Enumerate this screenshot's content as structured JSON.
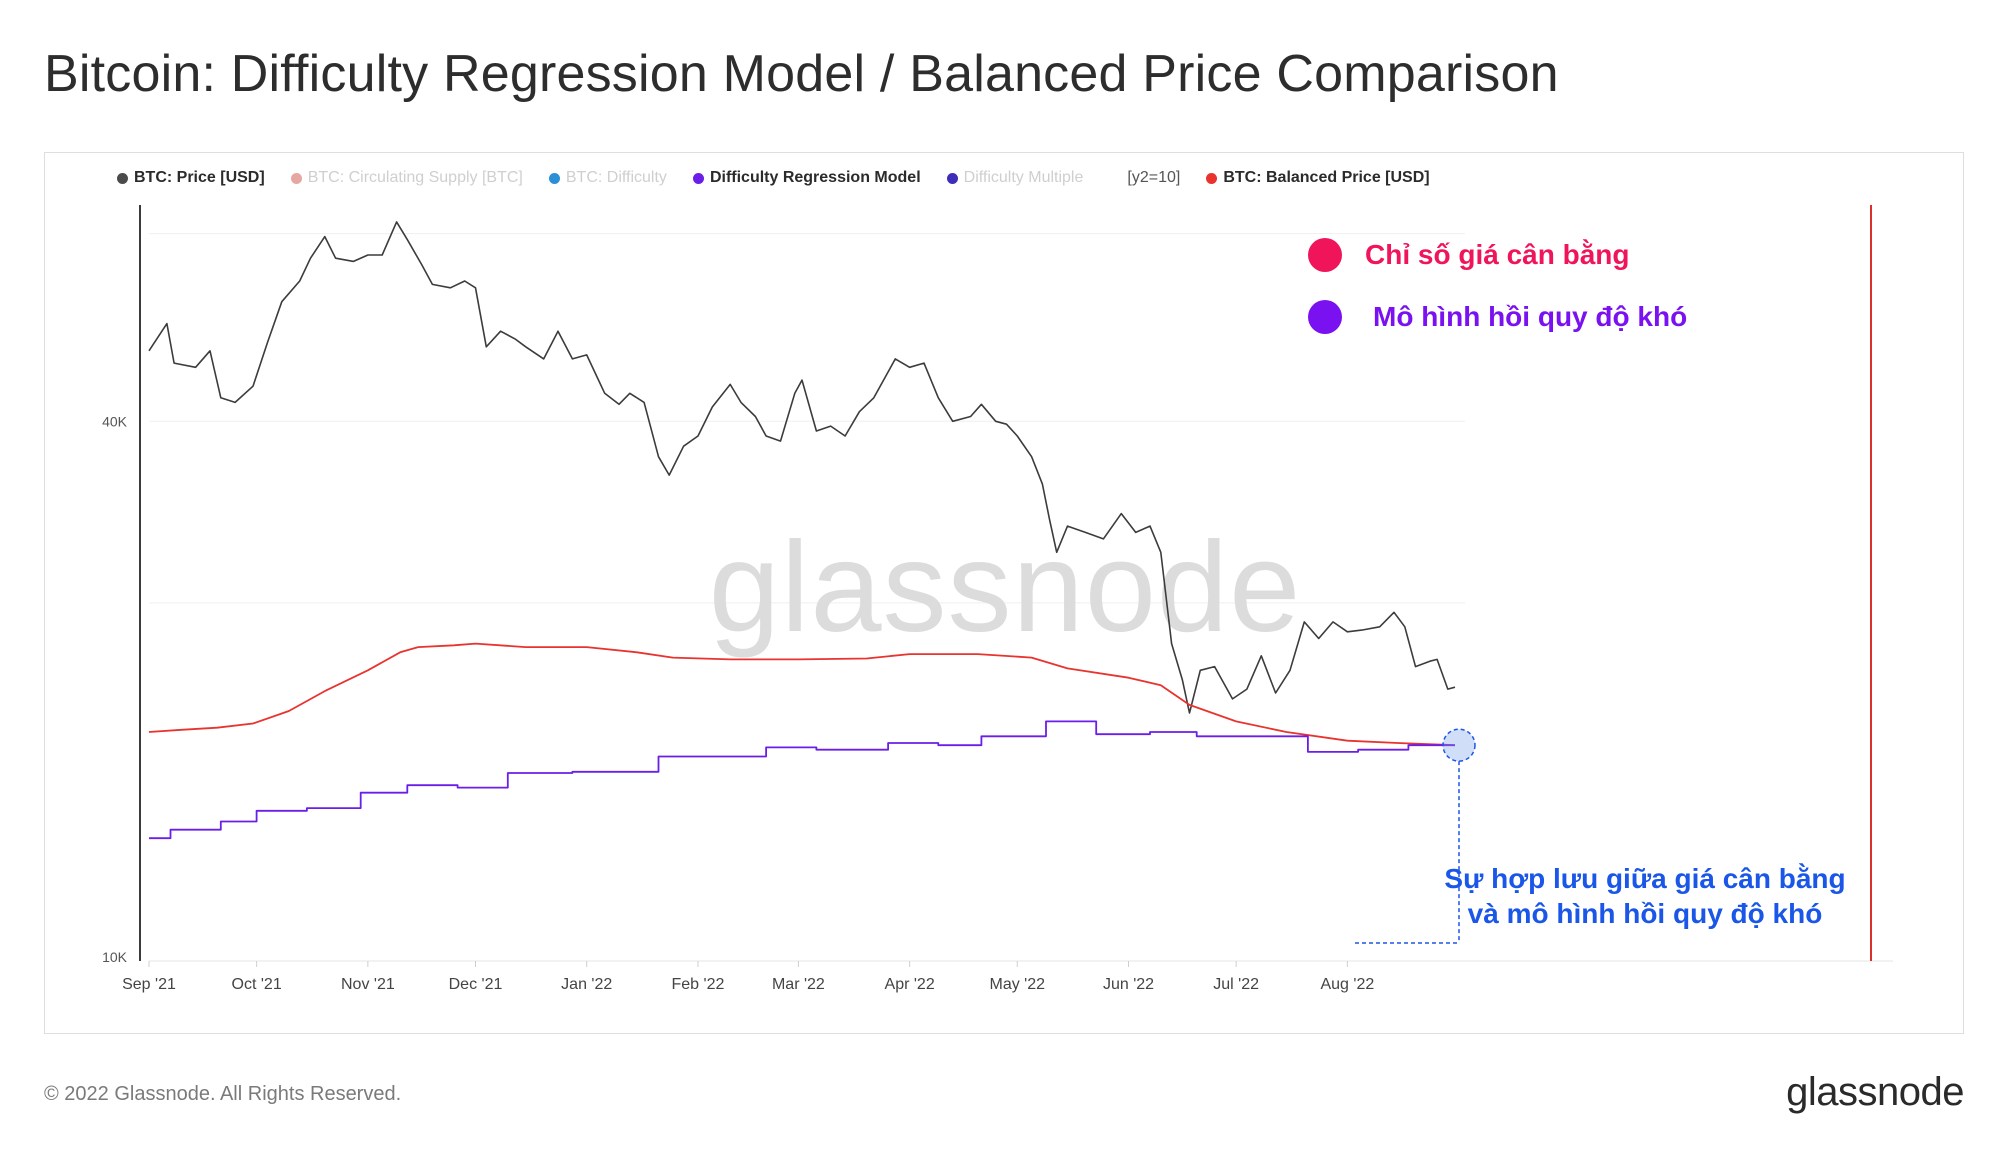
{
  "title": "Bitcoin: Difficulty Regression Model / Balanced Price Comparison",
  "legend": [
    {
      "label": "BTC: Price [USD]",
      "color": "#4a4a4a",
      "enabled": true
    },
    {
      "label": "BTC: Circulating Supply [BTC]",
      "color": "#e0493a",
      "enabled": false
    },
    {
      "label": "BTC: Difficulty",
      "color": "#2b8fd6",
      "enabled": false
    },
    {
      "label": "Difficulty Regression Model",
      "color": "#6a1ee8",
      "enabled": true
    },
    {
      "label": "Difficulty Multiple",
      "color": "#3d2db8",
      "enabled": false
    }
  ],
  "legend_extra": "[y2=10]",
  "legend_last": {
    "label": "BTC: Balanced Price [USD]",
    "color": "#e8332f",
    "enabled": true
  },
  "annotations": {
    "balanced_label": "Chỉ số giá cân bằng",
    "balanced_color": "#f0145a",
    "difficulty_label": "Mô hình hồi quy độ khó",
    "difficulty_color": "#7a11f0",
    "convergence_line1": "Sự hợp lưu giữa giá cân bằng",
    "convergence_line2": "và mô hình hồi quy độ khó",
    "convergence_color": "#1a56e8"
  },
  "watermark": "glassnode",
  "footer": {
    "copyright": "© 2022 Glassnode. All Rights Reserved.",
    "brand": "glassnode"
  },
  "chart_data": {
    "type": "line",
    "y_scale": "log",
    "ylim": [
      10000,
      70000
    ],
    "y_ticks": [
      {
        "value": 40000,
        "label": "40K"
      },
      {
        "value": 10000,
        "label": "10K"
      }
    ],
    "x_ticks": [
      {
        "date": "2021-09-01",
        "label": "Sep '21"
      },
      {
        "date": "2021-10-01",
        "label": "Oct '21"
      },
      {
        "date": "2021-11-01",
        "label": "Nov '21"
      },
      {
        "date": "2021-12-01",
        "label": "Dec '21"
      },
      {
        "date": "2022-01-01",
        "label": "Jan '22"
      },
      {
        "date": "2022-02-01",
        "label": "Feb '22"
      },
      {
        "date": "2022-03-01",
        "label": "Mar '22"
      },
      {
        "date": "2022-04-01",
        "label": "Apr '22"
      },
      {
        "date": "2022-05-01",
        "label": "May '22"
      },
      {
        "date": "2022-06-01",
        "label": "Jun '22"
      },
      {
        "date": "2022-07-01",
        "label": "Jul '22"
      },
      {
        "date": "2022-08-01",
        "label": "Aug '22"
      }
    ],
    "xlim": [
      "2021-09-01",
      "2022-08-31"
    ],
    "series": [
      {
        "name": "BTC: Price [USD]",
        "color": "#3c3c3c",
        "points": [
          [
            "2021-09-01",
            48000
          ],
          [
            "2021-09-06",
            51500
          ],
          [
            "2021-09-08",
            46500
          ],
          [
            "2021-09-14",
            46000
          ],
          [
            "2021-09-18",
            48000
          ],
          [
            "2021-09-21",
            42500
          ],
          [
            "2021-09-25",
            42000
          ],
          [
            "2021-09-30",
            43800
          ],
          [
            "2021-10-04",
            49000
          ],
          [
            "2021-10-08",
            54500
          ],
          [
            "2021-10-13",
            57500
          ],
          [
            "2021-10-16",
            61000
          ],
          [
            "2021-10-20",
            64500
          ],
          [
            "2021-10-23",
            61000
          ],
          [
            "2021-10-28",
            60500
          ],
          [
            "2021-11-01",
            61500
          ],
          [
            "2021-11-05",
            61500
          ],
          [
            "2021-11-09",
            67000
          ],
          [
            "2021-11-12",
            64000
          ],
          [
            "2021-11-16",
            60000
          ],
          [
            "2021-11-19",
            57000
          ],
          [
            "2021-11-24",
            56500
          ],
          [
            "2021-11-28",
            57500
          ],
          [
            "2021-12-01",
            56500
          ],
          [
            "2021-12-04",
            48500
          ],
          [
            "2021-12-08",
            50500
          ],
          [
            "2021-12-12",
            49500
          ],
          [
            "2021-12-15",
            48500
          ],
          [
            "2021-12-20",
            47000
          ],
          [
            "2021-12-24",
            50500
          ],
          [
            "2021-12-28",
            47000
          ],
          [
            "2022-01-01",
            47500
          ],
          [
            "2022-01-06",
            43000
          ],
          [
            "2022-01-10",
            41800
          ],
          [
            "2022-01-13",
            43000
          ],
          [
            "2022-01-17",
            42000
          ],
          [
            "2022-01-21",
            36500
          ],
          [
            "2022-01-24",
            34800
          ],
          [
            "2022-01-28",
            37500
          ],
          [
            "2022-02-01",
            38500
          ],
          [
            "2022-02-05",
            41500
          ],
          [
            "2022-02-10",
            44000
          ],
          [
            "2022-02-13",
            42000
          ],
          [
            "2022-02-17",
            40500
          ],
          [
            "2022-02-20",
            38500
          ],
          [
            "2022-02-24",
            38000
          ],
          [
            "2022-02-28",
            43000
          ],
          [
            "2022-03-02",
            44500
          ],
          [
            "2022-03-06",
            39000
          ],
          [
            "2022-03-10",
            39500
          ],
          [
            "2022-03-14",
            38500
          ],
          [
            "2022-03-18",
            41000
          ],
          [
            "2022-03-22",
            42500
          ],
          [
            "2022-03-28",
            47000
          ],
          [
            "2022-04-01",
            46000
          ],
          [
            "2022-04-05",
            46500
          ],
          [
            "2022-04-09",
            42500
          ],
          [
            "2022-04-13",
            40000
          ],
          [
            "2022-04-18",
            40500
          ],
          [
            "2022-04-21",
            41800
          ],
          [
            "2022-04-25",
            40000
          ],
          [
            "2022-04-28",
            39700
          ],
          [
            "2022-05-01",
            38500
          ],
          [
            "2022-05-05",
            36500
          ],
          [
            "2022-05-08",
            34000
          ],
          [
            "2022-05-10",
            31000
          ],
          [
            "2022-05-12",
            28500
          ],
          [
            "2022-05-15",
            30500
          ],
          [
            "2022-05-20",
            30000
          ],
          [
            "2022-05-25",
            29500
          ],
          [
            "2022-05-30",
            31500
          ],
          [
            "2022-06-03",
            30000
          ],
          [
            "2022-06-07",
            30500
          ],
          [
            "2022-06-10",
            28500
          ],
          [
            "2022-06-13",
            22500
          ],
          [
            "2022-06-16",
            20500
          ],
          [
            "2022-06-18",
            18800
          ],
          [
            "2022-06-21",
            21000
          ],
          [
            "2022-06-25",
            21200
          ],
          [
            "2022-06-30",
            19500
          ],
          [
            "2022-07-04",
            20000
          ],
          [
            "2022-07-08",
            21800
          ],
          [
            "2022-07-12",
            19800
          ],
          [
            "2022-07-16",
            21000
          ],
          [
            "2022-07-20",
            23800
          ],
          [
            "2022-07-24",
            22800
          ],
          [
            "2022-07-28",
            23800
          ],
          [
            "2022-08-01",
            23200
          ],
          [
            "2022-08-05",
            23300
          ],
          [
            "2022-08-10",
            23500
          ],
          [
            "2022-08-14",
            24400
          ],
          [
            "2022-08-17",
            23500
          ],
          [
            "2022-08-20",
            21200
          ],
          [
            "2022-08-24",
            21500
          ],
          [
            "2022-08-26",
            21600
          ],
          [
            "2022-08-29",
            20000
          ],
          [
            "2022-08-31",
            20100
          ]
        ]
      },
      {
        "name": "BTC: Balanced Price [USD]",
        "color": "#e8332f",
        "points": [
          [
            "2021-09-01",
            17900
          ],
          [
            "2021-09-10",
            18000
          ],
          [
            "2021-09-20",
            18100
          ],
          [
            "2021-09-30",
            18300
          ],
          [
            "2021-10-10",
            18900
          ],
          [
            "2021-10-20",
            19900
          ],
          [
            "2021-11-01",
            21000
          ],
          [
            "2021-11-10",
            22000
          ],
          [
            "2021-11-15",
            22300
          ],
          [
            "2021-11-25",
            22400
          ],
          [
            "2021-12-01",
            22500
          ],
          [
            "2021-12-15",
            22300
          ],
          [
            "2022-01-01",
            22300
          ],
          [
            "2022-01-15",
            22000
          ],
          [
            "2022-01-25",
            21700
          ],
          [
            "2022-02-10",
            21600
          ],
          [
            "2022-03-01",
            21600
          ],
          [
            "2022-03-20",
            21650
          ],
          [
            "2022-04-01",
            21900
          ],
          [
            "2022-04-20",
            21900
          ],
          [
            "2022-05-05",
            21700
          ],
          [
            "2022-05-15",
            21100
          ],
          [
            "2022-06-01",
            20600
          ],
          [
            "2022-06-10",
            20200
          ],
          [
            "2022-06-18",
            19200
          ],
          [
            "2022-07-01",
            18400
          ],
          [
            "2022-07-15",
            17900
          ],
          [
            "2022-08-01",
            17500
          ],
          [
            "2022-08-15",
            17400
          ],
          [
            "2022-08-31",
            17300
          ]
        ]
      },
      {
        "name": "Difficulty Regression Model",
        "color": "#6a1ee8",
        "points": [
          [
            "2021-09-01",
            13600
          ],
          [
            "2021-09-07",
            13600
          ],
          [
            "2021-09-07",
            13900
          ],
          [
            "2021-09-21",
            13900
          ],
          [
            "2021-09-21",
            14200
          ],
          [
            "2021-10-01",
            14200
          ],
          [
            "2021-10-01",
            14600
          ],
          [
            "2021-10-15",
            14600
          ],
          [
            "2021-10-15",
            14700
          ],
          [
            "2021-10-30",
            14700
          ],
          [
            "2021-10-30",
            15300
          ],
          [
            "2021-11-12",
            15300
          ],
          [
            "2021-11-12",
            15600
          ],
          [
            "2021-11-26",
            15600
          ],
          [
            "2021-11-26",
            15500
          ],
          [
            "2021-12-10",
            15500
          ],
          [
            "2021-12-10",
            16100
          ],
          [
            "2021-12-28",
            16100
          ],
          [
            "2021-12-28",
            16150
          ],
          [
            "2022-01-21",
            16150
          ],
          [
            "2022-01-21",
            16800
          ],
          [
            "2022-02-06",
            16800
          ],
          [
            "2022-02-06",
            16800
          ],
          [
            "2022-02-20",
            16800
          ],
          [
            "2022-02-20",
            17200
          ],
          [
            "2022-03-06",
            17200
          ],
          [
            "2022-03-06",
            17100
          ],
          [
            "2022-03-26",
            17100
          ],
          [
            "2022-03-26",
            17400
          ],
          [
            "2022-04-09",
            17400
          ],
          [
            "2022-04-09",
            17300
          ],
          [
            "2022-04-21",
            17300
          ],
          [
            "2022-04-21",
            17700
          ],
          [
            "2022-05-09",
            17700
          ],
          [
            "2022-05-09",
            18400
          ],
          [
            "2022-05-23",
            18400
          ],
          [
            "2022-05-23",
            17800
          ],
          [
            "2022-06-07",
            17800
          ],
          [
            "2022-06-07",
            17900
          ],
          [
            "2022-06-20",
            17900
          ],
          [
            "2022-06-20",
            17700
          ],
          [
            "2022-07-21",
            17700
          ],
          [
            "2022-07-21",
            17000
          ],
          [
            "2022-08-04",
            17000
          ],
          [
            "2022-08-04",
            17100
          ],
          [
            "2022-08-18",
            17100
          ],
          [
            "2022-08-18",
            17300
          ],
          [
            "2022-08-31",
            17300
          ]
        ]
      }
    ]
  }
}
